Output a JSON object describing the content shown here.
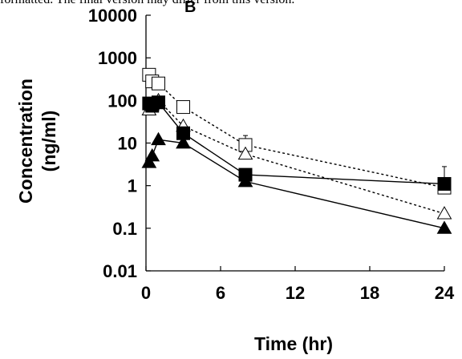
{
  "header": {
    "text": "formatted. The final version may differ from this version.",
    "panel_label": "B"
  },
  "chart_data": {
    "type": "line",
    "title": "",
    "xlabel": "Time (hr)",
    "ylabel_line1": "Concentration",
    "ylabel_line2": "(ng/ml)",
    "x_ticks": [
      0,
      6,
      12,
      18,
      24
    ],
    "x_tick_labels": [
      "0",
      "6",
      "12",
      "18",
      "24"
    ],
    "xlim": [
      0,
      24
    ],
    "y_scale": "log",
    "y_ticks": [
      0.01,
      0.1,
      1,
      10,
      100,
      1000,
      10000
    ],
    "y_tick_labels": [
      "0.01",
      "0.1",
      "1",
      "10",
      "100",
      "1000",
      "10000"
    ],
    "ylim": [
      0.01,
      10000
    ],
    "grid": false,
    "series": [
      {
        "marker": "square-open",
        "line": "dashed",
        "color": "#000000",
        "points": [
          {
            "x": 0.25,
            "y": 400
          },
          {
            "x": 0.5,
            "y": 280
          },
          {
            "x": 1,
            "y": 250
          },
          {
            "x": 3,
            "y": 70
          },
          {
            "x": 8,
            "y": 9
          },
          {
            "x": 24,
            "y": 0.9
          }
        ],
        "error_up": [
          null,
          null,
          null,
          null,
          15,
          null
        ]
      },
      {
        "marker": "triangle-open",
        "line": "dashed",
        "color": "#000000",
        "points": [
          {
            "x": 0.25,
            "y": 60
          },
          {
            "x": 0.5,
            "y": 80
          },
          {
            "x": 1,
            "y": 100
          },
          {
            "x": 3,
            "y": 25
          },
          {
            "x": 8,
            "y": 5.5
          },
          {
            "x": 24,
            "y": 0.22
          }
        ],
        "error_up": [
          null,
          null,
          null,
          null,
          null,
          null
        ]
      },
      {
        "marker": "square-filled",
        "line": "solid",
        "color": "#000000",
        "points": [
          {
            "x": 0.25,
            "y": 85
          },
          {
            "x": 0.5,
            "y": 75
          },
          {
            "x": 1,
            "y": 90
          },
          {
            "x": 3,
            "y": 17
          },
          {
            "x": 8,
            "y": 1.8
          },
          {
            "x": 24,
            "y": 1.1
          }
        ],
        "error_up": [
          null,
          null,
          null,
          null,
          null,
          2.8
        ]
      },
      {
        "marker": "triangle-filled",
        "line": "solid",
        "color": "#000000",
        "points": [
          {
            "x": 0.25,
            "y": 3.5
          },
          {
            "x": 0.5,
            "y": 5
          },
          {
            "x": 1,
            "y": 12
          },
          {
            "x": 3,
            "y": 10
          },
          {
            "x": 8,
            "y": 1.25
          },
          {
            "x": 24,
            "y": 0.1
          }
        ],
        "error_up": [
          null,
          null,
          null,
          null,
          null,
          null
        ]
      }
    ]
  }
}
